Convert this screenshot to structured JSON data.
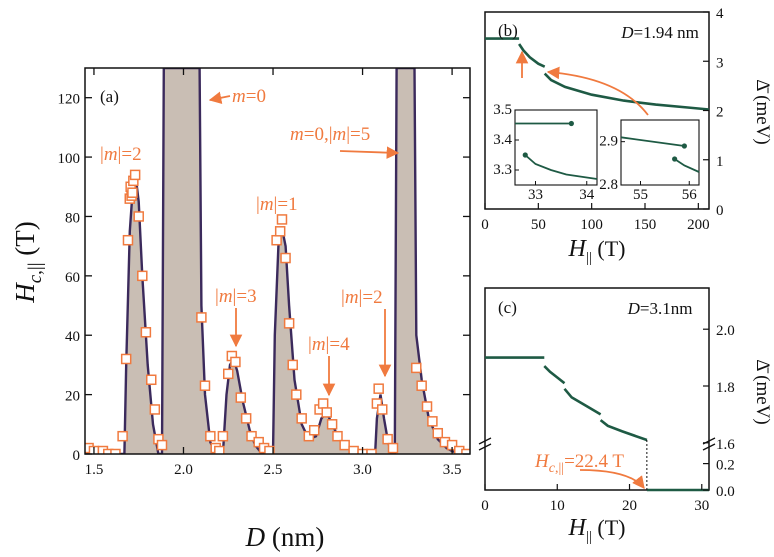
{
  "colors": {
    "curve": "#3b2a5c",
    "fill": "#c9beb4",
    "marker": "#f07a3f",
    "annotation": "#f07a3f",
    "gap_line": "#1e5a44",
    "axis": "#111111"
  },
  "chart_data": [
    {
      "id": "a",
      "panel_label": "(a)",
      "type": "area",
      "xlabel": "D (nm)",
      "ylabel": "H_c,|| (T)",
      "xlim": [
        1.45,
        3.6
      ],
      "ylim": [
        0,
        130
      ],
      "xticks": [
        1.5,
        2.0,
        2.5,
        3.0,
        3.5
      ],
      "xtick_labels": [
        "1.5",
        "2.0",
        "2.5",
        "3.0",
        "3.5"
      ],
      "yticks": [
        0,
        20,
        40,
        60,
        80,
        100,
        120
      ],
      "ytick_labels": [
        "0",
        "20",
        "40",
        "60",
        "80",
        "100",
        "120"
      ],
      "curve": [
        [
          1.45,
          0
        ],
        [
          1.67,
          0
        ],
        [
          1.68,
          30
        ],
        [
          1.7,
          75
        ],
        [
          1.72,
          92
        ],
        [
          1.73,
          95
        ],
        [
          1.75,
          85
        ],
        [
          1.77,
          60
        ],
        [
          1.8,
          30
        ],
        [
          1.83,
          10
        ],
        [
          1.86,
          0
        ],
        [
          1.88,
          0
        ],
        [
          1.89,
          130
        ],
        [
          2.09,
          130
        ],
        [
          2.1,
          50
        ],
        [
          2.12,
          20
        ],
        [
          2.15,
          4
        ],
        [
          2.18,
          0
        ],
        [
          2.22,
          0
        ],
        [
          2.24,
          20
        ],
        [
          2.26,
          30
        ],
        [
          2.28,
          32
        ],
        [
          2.3,
          28
        ],
        [
          2.33,
          18
        ],
        [
          2.37,
          8
        ],
        [
          2.4,
          3
        ],
        [
          2.44,
          0
        ],
        [
          2.5,
          0
        ],
        [
          2.51,
          40
        ],
        [
          2.53,
          70
        ],
        [
          2.55,
          76
        ],
        [
          2.57,
          70
        ],
        [
          2.59,
          50
        ],
        [
          2.62,
          25
        ],
        [
          2.66,
          10
        ],
        [
          2.7,
          5
        ],
        [
          2.74,
          6
        ],
        [
          2.77,
          12
        ],
        [
          2.8,
          14
        ],
        [
          2.83,
          10
        ],
        [
          2.87,
          5
        ],
        [
          2.92,
          2
        ],
        [
          2.96,
          0
        ],
        [
          3.07,
          0
        ],
        [
          3.08,
          12
        ],
        [
          3.1,
          20
        ],
        [
          3.12,
          12
        ],
        [
          3.14,
          5
        ],
        [
          3.16,
          0
        ],
        [
          3.18,
          0
        ],
        [
          3.19,
          130
        ],
        [
          3.29,
          130
        ],
        [
          3.3,
          40
        ],
        [
          3.33,
          25
        ],
        [
          3.37,
          12
        ],
        [
          3.42,
          5
        ],
        [
          3.47,
          2
        ],
        [
          3.5,
          1
        ],
        [
          3.55,
          0
        ],
        [
          3.6,
          0
        ]
      ],
      "markers": [
        [
          1.47,
          2
        ],
        [
          1.5,
          1
        ],
        [
          1.55,
          1
        ],
        [
          1.58,
          0
        ],
        [
          1.62,
          0
        ],
        [
          1.66,
          6
        ],
        [
          1.68,
          32
        ],
        [
          1.69,
          72
        ],
        [
          1.7,
          86
        ],
        [
          1.705,
          90
        ],
        [
          1.71,
          87
        ],
        [
          1.715,
          88
        ],
        [
          1.72,
          92
        ],
        [
          1.73,
          94
        ],
        [
          1.75,
          80
        ],
        [
          1.77,
          60
        ],
        [
          1.79,
          41
        ],
        [
          1.82,
          25
        ],
        [
          1.84,
          15
        ],
        [
          1.86,
          5
        ],
        [
          1.88,
          3
        ],
        [
          2.1,
          46
        ],
        [
          2.12,
          23
        ],
        [
          2.15,
          6
        ],
        [
          2.18,
          2
        ],
        [
          2.2,
          1
        ],
        [
          2.22,
          6
        ],
        [
          2.25,
          27
        ],
        [
          2.27,
          33
        ],
        [
          2.29,
          31
        ],
        [
          2.32,
          19
        ],
        [
          2.35,
          12
        ],
        [
          2.38,
          6
        ],
        [
          2.42,
          4
        ],
        [
          2.45,
          2
        ],
        [
          2.48,
          1
        ],
        [
          2.52,
          72
        ],
        [
          2.54,
          75
        ],
        [
          2.55,
          79
        ],
        [
          2.57,
          66
        ],
        [
          2.59,
          44
        ],
        [
          2.61,
          30
        ],
        [
          2.63,
          20
        ],
        [
          2.66,
          12
        ],
        [
          2.7,
          6
        ],
        [
          2.73,
          8
        ],
        [
          2.76,
          15
        ],
        [
          2.78,
          17
        ],
        [
          2.8,
          14
        ],
        [
          2.83,
          10
        ],
        [
          2.86,
          6
        ],
        [
          2.9,
          3
        ],
        [
          2.95,
          1
        ],
        [
          3.0,
          0
        ],
        [
          3.05,
          0
        ],
        [
          3.08,
          17
        ],
        [
          3.09,
          22
        ],
        [
          3.11,
          15
        ],
        [
          3.14,
          5
        ],
        [
          3.17,
          2
        ],
        [
          3.3,
          29
        ],
        [
          3.33,
          23
        ],
        [
          3.36,
          16
        ],
        [
          3.39,
          11
        ],
        [
          3.42,
          7
        ],
        [
          3.46,
          4
        ],
        [
          3.5,
          3
        ],
        [
          3.54,
          1
        ],
        [
          3.58,
          0
        ]
      ],
      "annotations": [
        {
          "text": "|m|=2",
          "x": 1.58,
          "y": 98
        },
        {
          "text": "m=0",
          "x": 2.22,
          "y": 110
        },
        {
          "text": "m=0,|m|=5",
          "x": 2.75,
          "y": 112
        },
        {
          "text": "|m|=1",
          "x": 2.44,
          "y": 82
        },
        {
          "text": "|m|=3",
          "x": 2.15,
          "y": 52
        },
        {
          "text": "|m|=4",
          "x": 2.66,
          "y": 36
        },
        {
          "text": "|m|=2",
          "x": 2.98,
          "y": 52
        }
      ]
    },
    {
      "id": "b",
      "panel_label": "(b)",
      "type": "line",
      "title": "D=1.94 nm",
      "xlabel": "H_|| (T)",
      "ylabel": "Δ̄ (meV)",
      "xlim": [
        0,
        210
      ],
      "ylim": [
        0,
        4
      ],
      "xticks": [
        0,
        50,
        100,
        150,
        200
      ],
      "xtick_labels": [
        "0",
        "50",
        "100",
        "150",
        "200"
      ],
      "yticks": [
        0,
        1,
        2,
        3,
        4
      ],
      "ytick_labels": [
        "0",
        "1",
        "2",
        "3",
        "4"
      ],
      "series": [
        {
          "values": [
            [
              0,
              3.46
            ],
            [
              32,
              3.46
            ]
          ]
        },
        {
          "values": [
            [
              32,
              3.35
            ],
            [
              36,
              3.22
            ],
            [
              42,
              3.08
            ],
            [
              50,
              2.95
            ],
            [
              56,
              2.89
            ]
          ]
        },
        {
          "values": [
            [
              56,
              2.75
            ],
            [
              62,
              2.62
            ],
            [
              75,
              2.48
            ],
            [
              100,
              2.32
            ],
            [
              130,
              2.2
            ],
            [
              160,
              2.12
            ],
            [
              190,
              2.06
            ],
            [
              210,
              2.02
            ]
          ]
        }
      ],
      "insets": [
        {
          "xlim": [
            32.6,
            34.2
          ],
          "ylim": [
            3.25,
            3.5
          ],
          "xticks": [
            33,
            34
          ],
          "xtick_labels": [
            "33",
            "34"
          ],
          "yticks": [
            3.3,
            3.4,
            3.5
          ],
          "ytick_labels": [
            "3.3",
            "3.4",
            "3.5"
          ],
          "series": [
            {
              "values": [
                [
                  32.6,
                  3.455
                ],
                [
                  33.7,
                  3.455
                ]
              ]
            },
            {
              "values": [
                [
                  32.8,
                  3.35
                ],
                [
                  33.0,
                  3.32
                ],
                [
                  33.3,
                  3.3
                ],
                [
                  33.6,
                  3.285
                ],
                [
                  34.2,
                  3.27
                ]
              ]
            }
          ],
          "dots": [
            [
              33.7,
              3.455
            ],
            [
              32.8,
              3.35
            ]
          ]
        },
        {
          "xlim": [
            54.6,
            56.2
          ],
          "ylim": [
            2.8,
            2.95
          ],
          "xticks": [
            55,
            56
          ],
          "xtick_labels": [
            "55",
            "56"
          ],
          "yticks": [
            2.8,
            2.9
          ],
          "ytick_labels": [
            "2.8",
            "2.9"
          ],
          "series": [
            {
              "values": [
                [
                  54.6,
                  2.91
                ],
                [
                  55.9,
                  2.89
                ]
              ]
            },
            {
              "values": [
                [
                  55.7,
                  2.86
                ],
                [
                  55.9,
                  2.845
                ],
                [
                  56.2,
                  2.83
                ]
              ]
            }
          ],
          "dots": [
            [
              55.9,
              2.89
            ],
            [
              55.7,
              2.86
            ]
          ]
        }
      ]
    },
    {
      "id": "c",
      "panel_label": "(c)",
      "type": "line",
      "title": "D=3.1nm",
      "xlabel": "H_|| (T)",
      "ylabel": "Δ̄ (meV)",
      "xlim": [
        0,
        31
      ],
      "yticks_upper": [
        1.6,
        1.8,
        2.0
      ],
      "ytick_labels_upper": [
        "1.6",
        "1.8",
        "2.0"
      ],
      "yticks_lower": [
        0.0,
        0.2
      ],
      "ytick_labels_lower": [
        "0.0",
        "0.2"
      ],
      "xticks": [
        0,
        10,
        20,
        30
      ],
      "xtick_labels": [
        "0",
        "10",
        "20",
        "30"
      ],
      "series": [
        {
          "values": [
            [
              0,
              1.9
            ],
            [
              8.2,
              1.9
            ]
          ]
        },
        {
          "values": [
            [
              8.2,
              1.87
            ],
            [
              9,
              1.85
            ],
            [
              10,
              1.83
            ],
            [
              11,
              1.81
            ]
          ]
        },
        {
          "values": [
            [
              11,
              1.79
            ],
            [
              12,
              1.76
            ],
            [
              14,
              1.73
            ],
            [
              16,
              1.7
            ]
          ]
        },
        {
          "values": [
            [
              16,
              1.68
            ],
            [
              17,
              1.66
            ],
            [
              19,
              1.64
            ],
            [
              22.4,
              1.61
            ]
          ]
        },
        {
          "values": [
            [
              22.4,
              0
            ],
            [
              31,
              0
            ]
          ]
        }
      ],
      "annotation": {
        "text": "H_c,||=22.4 T"
      }
    }
  ]
}
